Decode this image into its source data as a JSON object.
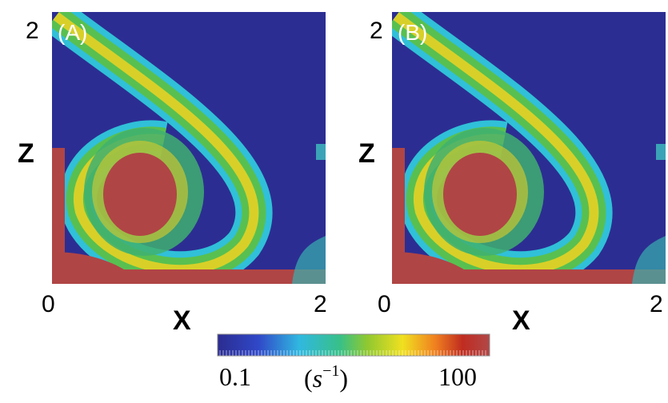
{
  "panels": [
    {
      "label": "(A)",
      "z_axis": {
        "label": "Z",
        "top": "2"
      },
      "x_axis": {
        "label": "X",
        "start": "0",
        "end": "2"
      }
    },
    {
      "label": "(B)",
      "z_axis": {
        "label": "Z",
        "top": "2"
      },
      "x_axis": {
        "label": "X",
        "start": "0",
        "end": "2"
      }
    }
  ],
  "colorbar": {
    "min": 0.1,
    "max": 100,
    "log": true,
    "unit": [
      "(",
      "s",
      "−1",
      ")"
    ]
  }
}
